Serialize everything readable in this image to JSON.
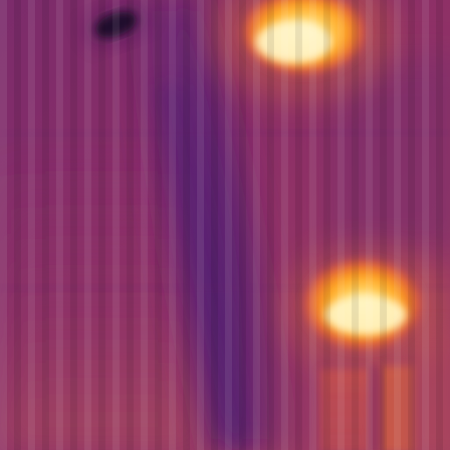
{
  "image": {
    "kind": "thermal-camera-frame",
    "palette": "inferno",
    "subjects": [
      "ceiling-light-top",
      "ceiling-light-bottom",
      "dark-spot",
      "cool-diagonal-band"
    ]
  },
  "colors": {
    "background": "#8a2f66",
    "background_warm": "#983a69",
    "cool_band": "#5d2376",
    "cool_band_deep": "#4c1d73",
    "hot_core": "#fff2b0",
    "hot_mid": "#ffc235",
    "hot_outer": "#ff8f1a",
    "hot_edge": "#cc4f54",
    "dark_spot": "#12091d"
  }
}
